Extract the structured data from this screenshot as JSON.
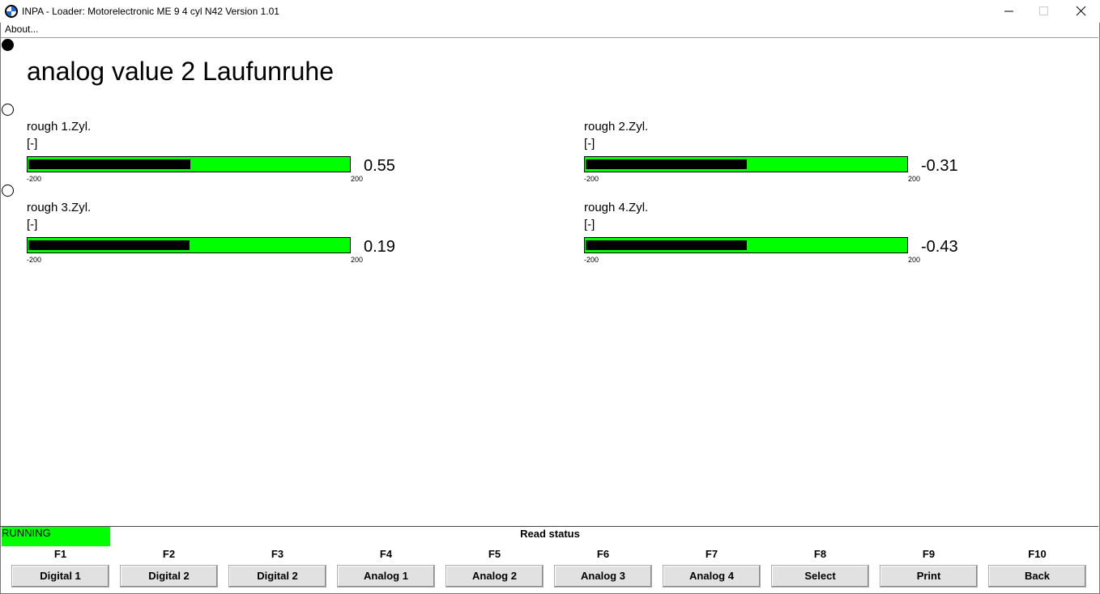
{
  "window": {
    "title": "INPA - Loader:  Motorelectronic ME 9  4 cyl N42 Version 1.01",
    "menu": [
      "About..."
    ]
  },
  "page": {
    "title": "analog value 2 Laufunruhe"
  },
  "gauges": [
    {
      "label": "rough 1.Zyl.",
      "unit": "[-]",
      "min": -200,
      "max": 200,
      "value": 0.55
    },
    {
      "label": "rough 2.Zyl.",
      "unit": "[-]",
      "min": -200,
      "max": 200,
      "value": -0.31
    },
    {
      "label": "rough 3.Zyl.",
      "unit": "[-]",
      "min": -200,
      "max": 200,
      "value": 0.19
    },
    {
      "label": "rough 4.Zyl.",
      "unit": "[-]",
      "min": -200,
      "max": 200,
      "value": -0.43
    }
  ],
  "status": {
    "state": "RUNNING",
    "message": "Read status"
  },
  "function_keys": [
    {
      "key": "F1",
      "label": "Digital 1"
    },
    {
      "key": "F2",
      "label": "Digital 2"
    },
    {
      "key": "F3",
      "label": "Digital 2"
    },
    {
      "key": "F4",
      "label": "Analog 1"
    },
    {
      "key": "F5",
      "label": "Analog 2"
    },
    {
      "key": "F6",
      "label": "Analog 3"
    },
    {
      "key": "F7",
      "label": "Analog 4"
    },
    {
      "key": "F8",
      "label": "Select"
    },
    {
      "key": "F9",
      "label": "Print"
    },
    {
      "key": "F10",
      "label": "Back"
    }
  ]
}
